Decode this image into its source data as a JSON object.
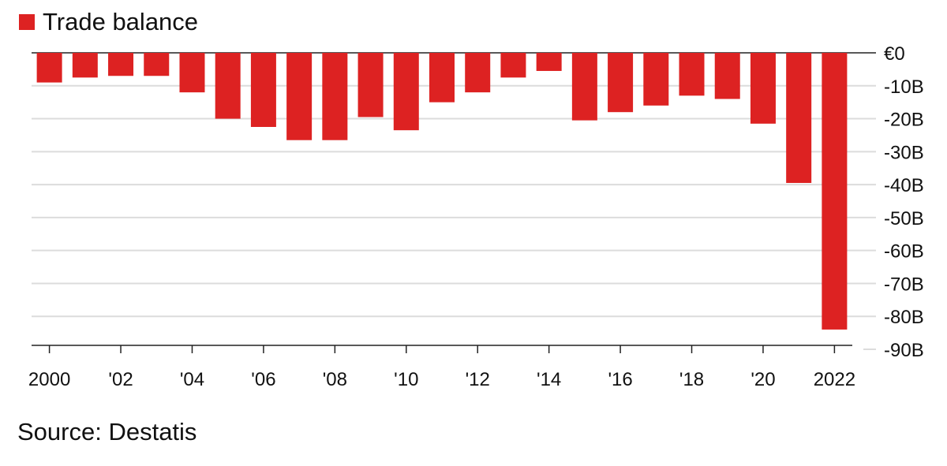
{
  "legend": {
    "label": "Trade balance",
    "color": "#dd2222"
  },
  "source": "Source: Destatis",
  "chart_data": {
    "type": "bar",
    "series": [
      {
        "name": "Trade balance",
        "color": "#dd2222",
        "values": [
          -9,
          -7.5,
          -7,
          -7,
          -12,
          -20,
          -22.5,
          -26.5,
          -26.5,
          -19.5,
          -23.5,
          -15,
          -12,
          -7.5,
          -5.5,
          -20.5,
          -18,
          -16,
          -13,
          -14,
          -21.5,
          -39.5,
          -84
        ]
      }
    ],
    "categories": [
      "2000",
      "2001",
      "2002",
      "2003",
      "2004",
      "2005",
      "2006",
      "2007",
      "2008",
      "2009",
      "2010",
      "2011",
      "2012",
      "2013",
      "2014",
      "2015",
      "2016",
      "2017",
      "2018",
      "2019",
      "2020",
      "2021",
      "2022"
    ],
    "x_tick_labels": [
      "2000",
      "'02",
      "'04",
      "'06",
      "'08",
      "'10",
      "'12",
      "'14",
      "'16",
      "'18",
      "'20",
      "2022"
    ],
    "y_ticks": [
      0,
      -10,
      -20,
      -30,
      -40,
      -50,
      -60,
      -70,
      -80,
      -90
    ],
    "y_tick_labels": [
      "€0",
      "-10B",
      "-20B",
      "-30B",
      "-40B",
      "-50B",
      "-60B",
      "-70B",
      "-80B",
      "-90B"
    ],
    "ylim": [
      -90,
      0
    ],
    "grid": true,
    "y_axis_position": "right",
    "legend_position": "top-left"
  }
}
